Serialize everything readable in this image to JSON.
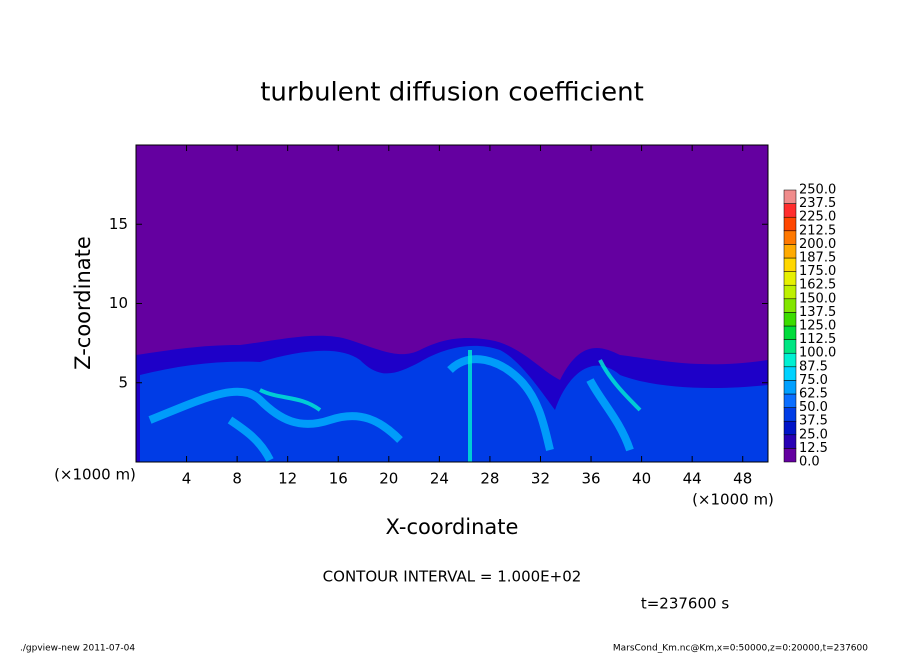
{
  "chart_data": {
    "type": "heatmap",
    "title": "turbulent diffusion coefficient",
    "x_label": "X-coordinate",
    "y_label": "Z-coordinate",
    "x_unit": "(×1000 m)",
    "xlim": [
      0,
      50
    ],
    "xticks": [
      4,
      8,
      12,
      16,
      20,
      24,
      28,
      32,
      36,
      40,
      44,
      48
    ],
    "ylim": [
      0,
      20
    ],
    "yticks": [
      5,
      10,
      15
    ],
    "colorbar_ticks": [
      {
        "value": 0,
        "label": "0.0"
      },
      {
        "value": 12.5,
        "label": "12.5"
      },
      {
        "value": 25,
        "label": "25.0"
      },
      {
        "value": 37.5,
        "label": "37.5"
      },
      {
        "value": 50,
        "label": "50.0"
      },
      {
        "value": 62.5,
        "label": "62.5"
      },
      {
        "value": 75,
        "label": "75.0"
      },
      {
        "value": 87.5,
        "label": "87.5"
      },
      {
        "value": 100,
        "label": "100.0"
      },
      {
        "value": 112.5,
        "label": "112.5"
      },
      {
        "value": 125,
        "label": "125.0"
      },
      {
        "value": 137.5,
        "label": "137.5"
      },
      {
        "value": 150,
        "label": "150.0"
      },
      {
        "value": 162.5,
        "label": "162.5"
      },
      {
        "value": 175,
        "label": "175.0"
      },
      {
        "value": 187.5,
        "label": "187.5"
      },
      {
        "value": 200,
        "label": "200.0"
      },
      {
        "value": 212.5,
        "label": "212.5"
      },
      {
        "value": 225,
        "label": "225.0"
      },
      {
        "value": 237.5,
        "label": "237.5"
      },
      {
        "value": 250,
        "label": "250.0"
      }
    ],
    "colorbar_colors": [
      "#6400a0",
      "#2800b4",
      "#0014c8",
      "#003ce6",
      "#0a6eff",
      "#00a0ff",
      "#00d2ff",
      "#00f0d2",
      "#00e682",
      "#00dc3c",
      "#3cdc00",
      "#82e600",
      "#bef000",
      "#e6f000",
      "#ffd700",
      "#ffaa00",
      "#ff7800",
      "#ff4600",
      "#ff2d2d",
      "#f08c8c"
    ],
    "contour_interval": "CONTOUR INTERVAL = 1.000E+02",
    "time_label": "t=237600 s",
    "footer_left": "./gpview-new  2011-07-04",
    "footer_right": "MarsCond_Km.nc@Km,x=0:50000,z=0:20000,t=237600"
  }
}
